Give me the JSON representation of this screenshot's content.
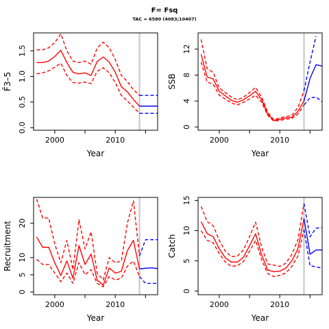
{
  "header": {
    "title": "F= Fsq",
    "subtitle": "TAC = 6580 (4083;10407)"
  },
  "style": {
    "history_color": "#ff0000",
    "projection_color": "#0000ff",
    "reference_line_color": "#c8c8c8",
    "line_types": {
      "median": "solid",
      "interval": "dashed"
    }
  },
  "chart_data": [
    {
      "id": "f",
      "type": "line",
      "title": "",
      "xlabel": "Year",
      "ylabel": "F̄3–5",
      "xlim": [
        1996.5,
        2017
      ],
      "ylim": [
        -0.05,
        1.85
      ],
      "xticks": [
        2000,
        2010
      ],
      "yticks": [
        0.0,
        0.5,
        1.0,
        1.5
      ],
      "ytick_labels": [
        "0.0",
        "0.5",
        "1.0",
        "1.5"
      ],
      "reference_year": 2014,
      "history": {
        "years": [
          1997,
          1998,
          1999,
          2000,
          2001,
          2002,
          2003,
          2004,
          2005,
          2006,
          2007,
          2008,
          2009,
          2010,
          2011,
          2012,
          2013,
          2014
        ],
        "median": [
          1.27,
          1.27,
          1.3,
          1.39,
          1.51,
          1.27,
          1.08,
          1.05,
          1.07,
          1.02,
          1.29,
          1.38,
          1.28,
          1.08,
          0.8,
          0.7,
          0.55,
          0.42
        ],
        "upper": [
          1.52,
          1.52,
          1.56,
          1.66,
          1.83,
          1.5,
          1.3,
          1.27,
          1.3,
          1.24,
          1.55,
          1.67,
          1.56,
          1.33,
          1.02,
          0.9,
          0.74,
          0.63
        ],
        "lower": [
          1.05,
          1.07,
          1.11,
          1.18,
          1.26,
          1.02,
          0.88,
          0.87,
          0.89,
          0.86,
          1.1,
          1.17,
          1.07,
          0.88,
          0.63,
          0.52,
          0.4,
          0.28
        ]
      },
      "projection": {
        "years": [
          2014,
          2015,
          2016,
          2017
        ],
        "median": [
          0.42,
          0.42,
          0.42,
          0.42
        ],
        "upper": [
          0.63,
          0.63,
          0.63,
          0.63
        ],
        "lower": [
          0.28,
          0.28,
          0.28,
          0.28
        ]
      }
    },
    {
      "id": "ssb",
      "type": "line",
      "title": "",
      "xlabel": "Year",
      "ylabel": "SSB",
      "xlim": [
        1996.5,
        2017
      ],
      "ylim": [
        -0.5,
        14.5
      ],
      "xticks": [
        2000,
        2010
      ],
      "yticks": [
        0,
        4,
        8,
        12
      ],
      "ytick_labels": [
        "0",
        "4",
        "8",
        "12"
      ],
      "reference_year": 2014,
      "history": {
        "years": [
          1997,
          1998,
          1999,
          2000,
          2001,
          2002,
          2003,
          2004,
          2005,
          2006,
          2007,
          2008,
          2009,
          2010,
          2011,
          2012,
          2013,
          2014
        ],
        "median": [
          11.2,
          7.7,
          7.4,
          5.5,
          4.8,
          4.1,
          3.8,
          4.2,
          4.8,
          5.5,
          4.2,
          2.0,
          1.0,
          1.2,
          1.4,
          1.5,
          2.4,
          4.0
        ],
        "upper": [
          13.5,
          9.0,
          8.4,
          6.0,
          5.3,
          4.6,
          4.2,
          4.6,
          5.3,
          6.1,
          4.6,
          2.3,
          1.1,
          1.4,
          1.6,
          1.8,
          3.0,
          5.6
        ],
        "lower": [
          10.0,
          6.9,
          6.6,
          4.9,
          4.3,
          3.7,
          3.4,
          3.8,
          4.3,
          4.9,
          3.8,
          1.8,
          0.9,
          1.0,
          1.2,
          1.3,
          2.0,
          3.4
        ]
      },
      "projection": {
        "years": [
          2014,
          2015,
          2016,
          2017
        ],
        "median": [
          4.0,
          7.5,
          9.6,
          9.4
        ],
        "upper": [
          5.6,
          10.0,
          14.0,
          null
        ],
        "lower": [
          3.4,
          4.5,
          4.6,
          3.9
        ]
      }
    },
    {
      "id": "recruitment",
      "type": "line",
      "title": "",
      "xlabel": "Year",
      "ylabel": "Recruitment",
      "xlim": [
        1996.5,
        2017
      ],
      "ylim": [
        -0.8,
        27.5
      ],
      "xticks": [
        2000,
        2010
      ],
      "yticks": [
        0,
        5,
        10,
        20
      ],
      "ytick_labels": [
        "0",
        "5",
        "10",
        "20"
      ],
      "reference_year": 2014,
      "history": {
        "years": [
          1997,
          1998,
          1999,
          2000,
          2001,
          2002,
          2003,
          2004,
          2005,
          2006,
          2007,
          2008,
          2009,
          2010,
          2011,
          2012,
          2013,
          2014
        ],
        "median": [
          16.0,
          13.0,
          13.0,
          8.5,
          4.8,
          9.0,
          4.0,
          13.5,
          8.0,
          11.0,
          3.5,
          2.0,
          7.0,
          5.5,
          6.0,
          12.0,
          15.0,
          6.7
        ],
        "upper": [
          27.0,
          21.5,
          21.5,
          14.0,
          8.5,
          15.0,
          6.5,
          21.0,
          12.5,
          17.5,
          5.5,
          3.5,
          10.0,
          8.5,
          9.0,
          20.0,
          26.5,
          10.5
        ],
        "lower": [
          9.5,
          8.0,
          8.0,
          5.5,
          3.0,
          5.5,
          2.5,
          8.5,
          5.0,
          6.5,
          2.5,
          1.5,
          4.5,
          3.5,
          4.0,
          7.5,
          9.0,
          4.5
        ]
      },
      "projection": {
        "years": [
          2014,
          2015,
          2016,
          2017
        ],
        "median": [
          6.7,
          6.9,
          7.0,
          6.8
        ],
        "upper": [
          10.5,
          15.2,
          15.2,
          15.2
        ],
        "lower": [
          4.5,
          2.5,
          2.5,
          2.5
        ]
      }
    },
    {
      "id": "catch",
      "type": "line",
      "title": "",
      "xlabel": "Year",
      "ylabel": "Catch",
      "xlim": [
        1996.5,
        2017
      ],
      "ylim": [
        -0.6,
        15.5
      ],
      "xticks": [
        2000,
        2010
      ],
      "yticks": [
        0,
        5,
        10,
        15
      ],
      "ytick_labels": [
        "0",
        "5",
        "10",
        "15"
      ],
      "reference_year": 2014,
      "history": {
        "years": [
          1997,
          1998,
          1999,
          2000,
          2001,
          2002,
          2003,
          2004,
          2005,
          2006,
          2007,
          2008,
          2009,
          2010,
          2011,
          2012,
          2013,
          2014
        ],
        "median": [
          11.5,
          9.5,
          9.0,
          7.0,
          5.5,
          4.8,
          4.8,
          5.6,
          7.5,
          9.5,
          6.0,
          3.5,
          3.2,
          3.3,
          3.8,
          5.0,
          7.0,
          12.0
        ],
        "upper": [
          14.0,
          11.5,
          10.8,
          8.4,
          6.6,
          5.7,
          5.8,
          6.8,
          9.0,
          11.4,
          7.3,
          4.5,
          4.3,
          4.1,
          4.6,
          6.1,
          8.5,
          14.5
        ],
        "lower": [
          10.0,
          8.4,
          8.0,
          6.2,
          4.8,
          4.1,
          4.2,
          4.9,
          6.6,
          8.4,
          5.2,
          2.9,
          2.4,
          2.6,
          3.0,
          4.1,
          5.8,
          10.2
        ]
      },
      "projection": {
        "years": [
          2014,
          2015,
          2016,
          2017
        ],
        "median": [
          12.0,
          6.1,
          6.8,
          6.8
        ],
        "upper": [
          14.5,
          9.0,
          10.4,
          10.5
        ],
        "lower": [
          10.2,
          4.2,
          4.0,
          3.8
        ]
      }
    }
  ]
}
